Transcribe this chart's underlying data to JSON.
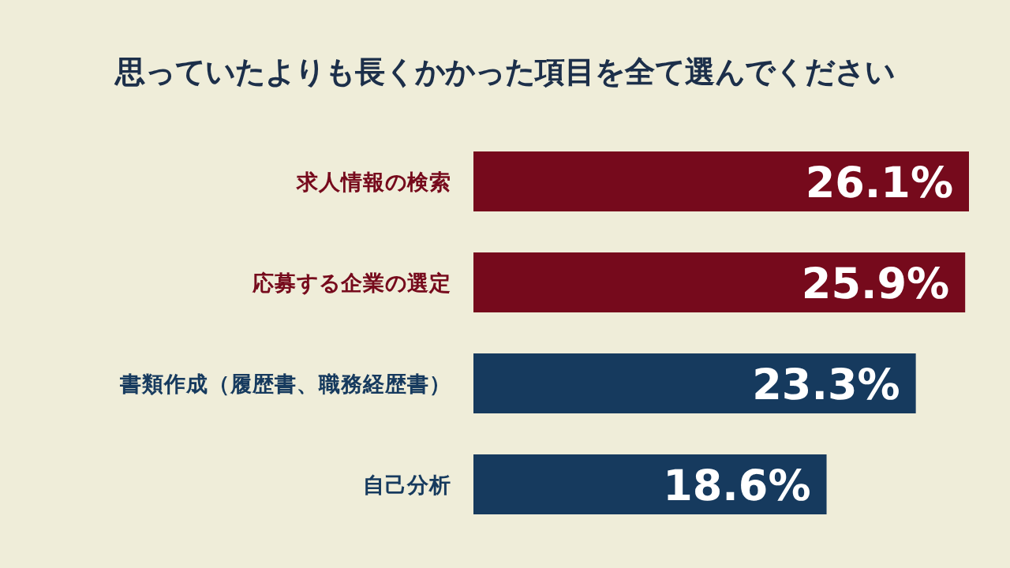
{
  "chart_data": {
    "type": "bar",
    "orientation": "horizontal",
    "title": "思っていたよりも長くかかった項目を全て選んでください",
    "categories": [
      "求人情報の検索",
      "応募する企業の選定",
      "書類作成（履歴書、職務経歴書）",
      "自己分析"
    ],
    "values": [
      26.1,
      25.9,
      23.3,
      18.6
    ],
    "colors": [
      "#760a1c",
      "#760a1c",
      "#163a5e",
      "#163a5e"
    ],
    "value_labels": [
      "26.1%",
      "25.9%",
      "23.3%",
      "18.6%"
    ]
  }
}
